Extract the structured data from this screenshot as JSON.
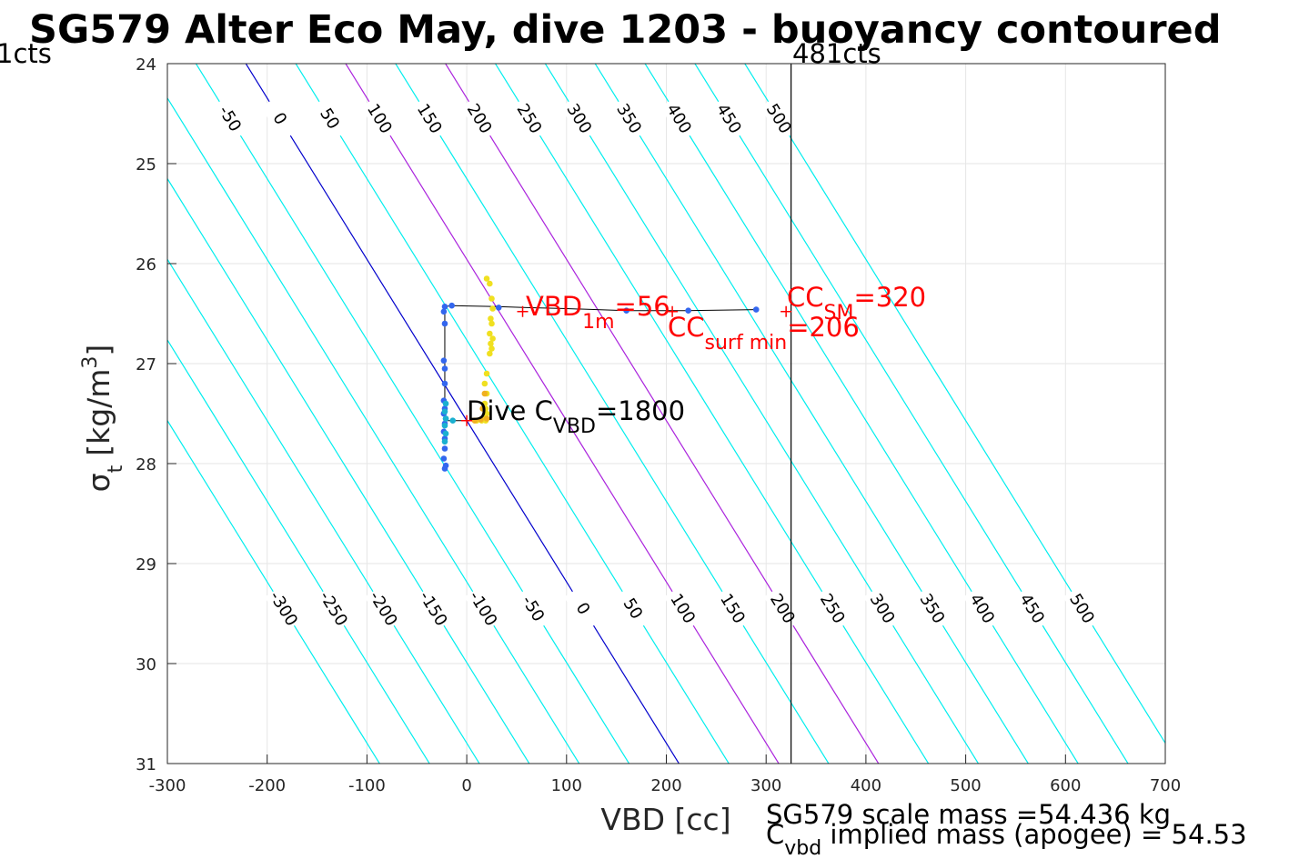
{
  "title": "SG579 Alter Eco May, dive 1203 - buoyancy contoured",
  "top_left_label": "1cts",
  "top_right_label": "481cts",
  "xlabel": "VBD [cc]",
  "ylabel": {
    "main": "σ",
    "sub": "t",
    "units": "[kg/m",
    "sup": "3",
    "close": "]"
  },
  "annotations": {
    "vbd_1m": {
      "main": "VBD",
      "sub": "1m",
      "value": "=56",
      "x": 56,
      "y": 26.48,
      "color": "#ff0000"
    },
    "cc_sm": {
      "main": "CC",
      "sub": "SM",
      "value": "=320",
      "x": 320,
      "y": 26.48,
      "color": "#ff0000"
    },
    "cc_surf_min": {
      "main": "CC",
      "sub": "surf min",
      "value": "=206",
      "x": 206,
      "y": 26.48,
      "color": "#ff0000"
    },
    "dive_cvbd": {
      "main": "Dive C",
      "sub": "VBD",
      "value": "=1800",
      "x": 0,
      "y": 27.57,
      "color": "#000000"
    }
  },
  "footer": {
    "line1": "SG579 scale mass =54.436 kg",
    "line2_main": "C",
    "line2_sub": "vbd",
    "line2_rest": " implied mass (apogee) = 54.53"
  },
  "chart_data": {
    "type": "scatter",
    "xlim": [
      -300,
      700
    ],
    "ylim": [
      24,
      31
    ],
    "y_reversed": true,
    "grid": true,
    "xticks": [
      -300,
      -200,
      -100,
      0,
      100,
      200,
      300,
      400,
      500,
      600,
      700
    ],
    "yticks": [
      24,
      25,
      26,
      27,
      28,
      29,
      30,
      31
    ],
    "contours": {
      "levels": [
        -300,
        -250,
        -200,
        -150,
        -100,
        -50,
        0,
        50,
        100,
        150,
        200,
        250,
        300,
        350,
        400,
        450,
        500
      ],
      "vbd_per_sigma": 62,
      "reference_sigma": 27.57,
      "mass_offset_cc": 0,
      "colors": {
        "default": "#00eeee",
        "zero": "#0000cc",
        "highlight": "#aa22dd"
      },
      "highlight_levels": [
        100,
        200
      ],
      "upper_label_sigma": 24.55,
      "lower_label_sigma": 29.45
    },
    "vertical_line_x": 325,
    "path": [
      [
        290,
        26.46
      ],
      [
        220,
        26.47
      ],
      [
        160,
        26.47
      ],
      [
        100,
        26.45
      ],
      [
        60,
        26.44
      ],
      [
        30,
        26.43
      ],
      [
        -15,
        26.42
      ],
      [
        -22,
        26.43
      ],
      [
        -22,
        27.0
      ],
      [
        -22,
        27.57
      ],
      [
        20,
        27.57
      ]
    ],
    "points_blue": [
      [
        290,
        26.46
      ],
      [
        222,
        26.47
      ],
      [
        160,
        26.47
      ],
      [
        32,
        26.44
      ],
      [
        -15,
        26.42
      ],
      [
        -22,
        26.43
      ],
      [
        -23,
        26.48
      ],
      [
        -22,
        26.6
      ],
      [
        -23,
        26.97
      ],
      [
        -22,
        27.05
      ],
      [
        -22,
        27.2
      ],
      [
        -23,
        27.37
      ],
      [
        -22,
        27.45
      ],
      [
        -23,
        27.5
      ],
      [
        -22,
        27.6
      ],
      [
        -23,
        27.68
      ],
      [
        -22,
        27.75
      ],
      [
        -22,
        27.85
      ],
      [
        -23,
        27.95
      ],
      [
        -21,
        28.02
      ],
      [
        -22,
        28.05
      ]
    ],
    "points_cyan": [
      [
        -21,
        27.4
      ],
      [
        -22,
        27.48
      ],
      [
        -21,
        27.55
      ],
      [
        -22,
        27.62
      ],
      [
        -21,
        27.7
      ],
      [
        -22,
        27.78
      ],
      [
        -21,
        27.55
      ],
      [
        -14,
        27.57
      ]
    ],
    "points_yellow": [
      [
        20,
        26.15
      ],
      [
        23,
        26.2
      ],
      [
        25,
        26.35
      ],
      [
        26,
        26.45
      ],
      [
        24,
        26.55
      ],
      [
        25,
        26.6
      ],
      [
        23,
        26.7
      ],
      [
        26,
        26.75
      ],
      [
        24,
        26.8
      ],
      [
        25,
        26.85
      ],
      [
        23,
        26.9
      ],
      [
        20,
        27.1
      ],
      [
        18,
        27.2
      ],
      [
        20,
        27.3
      ],
      [
        18,
        27.4
      ],
      [
        19,
        27.45
      ],
      [
        20,
        27.5
      ],
      [
        18,
        27.55
      ],
      [
        19,
        27.57
      ],
      [
        15,
        27.57
      ],
      [
        10,
        27.57
      ]
    ],
    "points_orange": [
      [
        18,
        27.3
      ],
      [
        16,
        27.45
      ],
      [
        14,
        27.56
      ],
      [
        8,
        27.57
      ],
      [
        20,
        27.55
      ]
    ],
    "point_colors": {
      "blue": "#3366ee",
      "cyan": "#1ab0d0",
      "yellow": "#f0e020",
      "orange": "#f0b020"
    },
    "markers_plus": [
      {
        "x": 56,
        "y": 26.48,
        "color": "#ff0000"
      },
      {
        "x": 320,
        "y": 26.48,
        "color": "#ff0000"
      },
      {
        "x": 206,
        "y": 26.48,
        "color": "#ff0000"
      },
      {
        "x": 0,
        "y": 27.57,
        "color": "#ff0000"
      }
    ]
  }
}
